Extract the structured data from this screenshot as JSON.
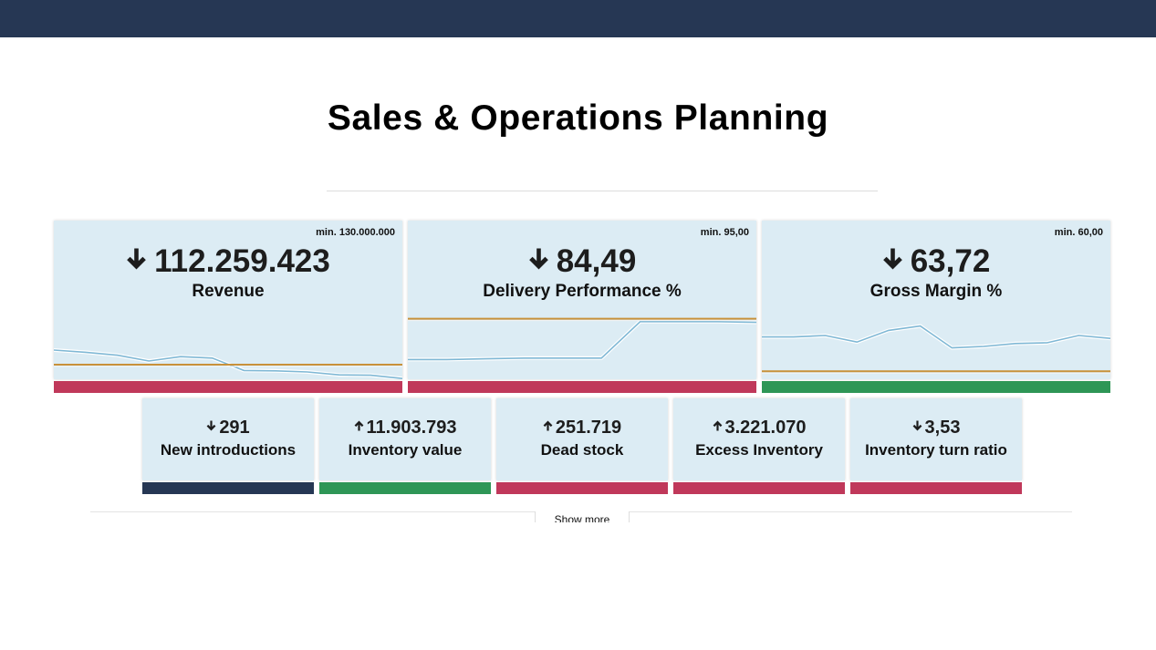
{
  "page": {
    "title": "Sales & Operations Planning"
  },
  "colors": {
    "header": "#263754",
    "panel": "#dcecf4",
    "bad": "#c0385a",
    "good": "#2e9656",
    "neutral": "#263754",
    "trend_line": "#7fb8d5",
    "threshold_line": "#c8913a"
  },
  "kpis": [
    {
      "key": "revenue",
      "min_label": "min. 130.000.000",
      "value": "112.259.423",
      "label": "Revenue",
      "direction": "down",
      "status": "bad",
      "trend": {
        "min": 130000000,
        "values": [
          0.35,
          0.32,
          0.28,
          0.2,
          0.26,
          0.24,
          0.07,
          0.065,
          0.05,
          0.01,
          0.005,
          -0.04
        ],
        "threshold": 0.15
      }
    },
    {
      "key": "delivery",
      "min_label": "min. 95,00",
      "value": "84,49",
      "label": "Delivery Performance %",
      "direction": "down",
      "status": "bad",
      "trend": {
        "min": 95.0,
        "values": [
          0.22,
          0.22,
          0.23,
          0.24,
          0.24,
          0.24,
          0.74,
          0.74,
          0.74,
          0.73
        ],
        "threshold": 0.78
      }
    },
    {
      "key": "margin",
      "min_label": "min. 60,00",
      "value": "63,72",
      "label": "Gross Margin %",
      "direction": "down",
      "status": "good",
      "trend": {
        "min": 60.0,
        "values": [
          0.53,
          0.53,
          0.55,
          0.46,
          0.62,
          0.68,
          0.38,
          0.4,
          0.44,
          0.45,
          0.55,
          0.51
        ],
        "threshold": 0.06
      }
    }
  ],
  "small_kpis": [
    {
      "key": "new-introductions",
      "value": "291",
      "label": "New introductions",
      "direction": "down",
      "status": "neutral"
    },
    {
      "key": "inventory-value",
      "value": "11.903.793",
      "label": "Inventory value",
      "direction": "up",
      "status": "good"
    },
    {
      "key": "dead-stock",
      "value": "251.719",
      "label": "Dead stock",
      "direction": "up",
      "status": "bad"
    },
    {
      "key": "excess-inventory",
      "value": "3.221.070",
      "label": "Excess Inventory",
      "direction": "up",
      "status": "bad"
    },
    {
      "key": "inventory-turn-ratio",
      "value": "3,53",
      "label": "Inventory turn ratio",
      "direction": "down",
      "status": "bad"
    }
  ],
  "footer": {
    "show_more_label": "Show more"
  },
  "icons": {
    "down": "arrow-down-icon",
    "up": "arrow-up-icon"
  }
}
